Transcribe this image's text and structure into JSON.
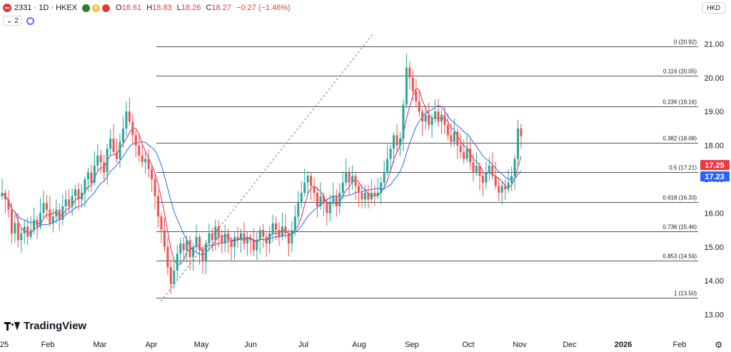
{
  "header": {
    "symbol_title": "2331 · 1D · HKEX",
    "badge_d": "D",
    "ohlc": [
      {
        "k": "O",
        "v": "18.61"
      },
      {
        "k": "H",
        "v": "18.83"
      },
      {
        "k": "L",
        "v": "18.26"
      },
      {
        "k": "C",
        "v": "18.27"
      }
    ],
    "change": "−0.27 (−1.46%)",
    "indicator_count": "2",
    "currency": "HKD"
  },
  "branding": {
    "logo_text": "TradingView"
  },
  "colors": {
    "up": "#26a69a",
    "down": "#ef5350",
    "ma_fast": "#e91e63",
    "ma_slow": "#2962ff",
    "fib_line": "#555555",
    "trend_line": "#787b86",
    "price_badge_red": "#f23645",
    "price_badge_blue": "#2962ff"
  },
  "chart_data": {
    "type": "candlestick",
    "title": "2331 · 1D · HKEX",
    "ylim": [
      12.55,
      21.45
    ],
    "y_ticks": [
      "21.00",
      "20.00",
      "19.00",
      "18.00",
      "17.00",
      "16.00",
      "15.00",
      "14.00",
      "13.00"
    ],
    "x_ticks": [
      "25",
      "Feb",
      "Mar",
      "Apr",
      "May",
      "Jun",
      "Jul",
      "Aug",
      "Sep",
      "Oct",
      "Nov",
      "Dec",
      "2026",
      "Feb"
    ],
    "fib_levels": [
      {
        "ratio": "0",
        "price": 20.92,
        "label": "0 (20.92)"
      },
      {
        "ratio": "0.116",
        "price": 20.05,
        "label": "0.116 (20.05)"
      },
      {
        "ratio": "0.236",
        "price": 19.16,
        "label": "0.236 (19.16)"
      },
      {
        "ratio": "0.382",
        "price": 18.08,
        "label": "0.382 (18.08)"
      },
      {
        "ratio": "0.5",
        "price": 17.21,
        "label": "0.5 (17.21)"
      },
      {
        "ratio": "0.618",
        "price": 16.33,
        "label": "0.618 (16.33)"
      },
      {
        "ratio": "0.736",
        "price": 15.46,
        "label": "0.736 (15.46)"
      },
      {
        "ratio": "0.853",
        "price": 14.59,
        "label": "0.853 (14.59)"
      },
      {
        "ratio": "1",
        "price": 13.5,
        "label": "1 (13.50)"
      }
    ],
    "price_badges": [
      {
        "value": "17.25",
        "price": 17.25,
        "color": "red"
      },
      {
        "value": "17.23",
        "price": 17.23,
        "color": "blue"
      }
    ],
    "closes": [
      [
        1,
        16.6
      ],
      [
        2,
        16.4
      ],
      [
        3,
        16.1
      ],
      [
        4,
        15.4
      ],
      [
        5,
        15.7
      ],
      [
        6,
        15.2
      ],
      [
        7,
        15.4
      ],
      [
        8,
        15.6
      ],
      [
        9,
        15.3
      ],
      [
        10,
        15.5
      ],
      [
        11,
        15.8
      ],
      [
        12,
        15.6
      ],
      [
        13,
        16.0
      ],
      [
        14,
        16.3
      ],
      [
        15,
        16.1
      ],
      [
        16,
        15.7
      ],
      [
        17,
        15.9
      ],
      [
        18,
        16.1
      ],
      [
        19,
        15.8
      ],
      [
        20,
        16.2
      ],
      [
        21,
        16.4
      ],
      [
        22,
        16.2
      ],
      [
        23,
        16.5
      ],
      [
        24,
        16.7
      ],
      [
        25,
        16.4
      ],
      [
        26,
        16.6
      ],
      [
        27,
        17.0
      ],
      [
        28,
        17.2
      ],
      [
        29,
        16.9
      ],
      [
        30,
        17.4
      ],
      [
        31,
        17.7
      ],
      [
        32,
        17.5
      ],
      [
        33,
        17.2
      ],
      [
        34,
        17.9
      ],
      [
        35,
        18.2
      ],
      [
        36,
        17.8
      ],
      [
        37,
        17.6
      ],
      [
        38,
        18.1
      ],
      [
        39,
        18.5
      ],
      [
        40,
        19.0
      ],
      [
        41,
        18.7
      ],
      [
        42,
        18.3
      ],
      [
        43,
        18.0
      ],
      [
        44,
        17.7
      ],
      [
        45,
        17.5
      ],
      [
        46,
        17.6
      ],
      [
        47,
        17.3
      ],
      [
        48,
        17.0
      ],
      [
        49,
        16.5
      ],
      [
        50,
        15.9
      ],
      [
        51,
        15.5
      ],
      [
        52,
        15.0
      ],
      [
        53,
        14.4
      ],
      [
        54,
        13.9
      ],
      [
        55,
        14.3
      ],
      [
        56,
        14.8
      ],
      [
        57,
        15.1
      ],
      [
        58,
        14.9
      ],
      [
        59,
        15.2
      ],
      [
        60,
        14.7
      ],
      [
        61,
        15.0
      ],
      [
        62,
        15.3
      ],
      [
        63,
        14.9
      ],
      [
        64,
        14.6
      ],
      [
        65,
        15.1
      ],
      [
        66,
        15.4
      ],
      [
        67,
        15.2
      ],
      [
        68,
        15.6
      ],
      [
        69,
        15.3
      ],
      [
        70,
        15.1
      ],
      [
        71,
        15.4
      ],
      [
        72,
        15.2
      ],
      [
        73,
        15.0
      ],
      [
        74,
        15.3
      ],
      [
        75,
        15.2
      ],
      [
        76,
        15.4
      ],
      [
        77,
        15.1
      ],
      [
        78,
        15.3
      ],
      [
        79,
        15.2
      ],
      [
        80,
        14.9
      ],
      [
        81,
        15.2
      ],
      [
        82,
        15.5
      ],
      [
        83,
        15.3
      ],
      [
        84,
        15.1
      ],
      [
        85,
        15.4
      ],
      [
        86,
        15.7
      ],
      [
        87,
        15.5
      ],
      [
        88,
        15.3
      ],
      [
        89,
        15.6
      ],
      [
        90,
        15.4
      ],
      [
        91,
        15.1
      ],
      [
        92,
        15.5
      ],
      [
        93,
        15.9
      ],
      [
        94,
        16.3
      ],
      [
        95,
        16.6
      ],
      [
        96,
        16.9
      ],
      [
        97,
        17.1
      ],
      [
        98,
        16.8
      ],
      [
        99,
        16.6
      ],
      [
        100,
        16.2
      ],
      [
        101,
        16.5
      ],
      [
        102,
        16.3
      ],
      [
        103,
        16.0
      ],
      [
        104,
        16.3
      ],
      [
        105,
        16.5
      ],
      [
        106,
        16.2
      ],
      [
        107,
        16.6
      ],
      [
        108,
        16.9
      ],
      [
        109,
        17.2
      ],
      [
        110,
        16.9
      ],
      [
        111,
        17.1
      ],
      [
        112,
        16.8
      ],
      [
        113,
        16.6
      ],
      [
        114,
        16.4
      ],
      [
        115,
        16.6
      ],
      [
        116,
        16.4
      ],
      [
        117,
        16.6
      ],
      [
        118,
        16.5
      ],
      [
        119,
        16.6
      ],
      [
        120,
        16.9
      ],
      [
        121,
        17.2
      ],
      [
        122,
        17.6
      ],
      [
        123,
        17.9
      ],
      [
        124,
        18.3
      ],
      [
        125,
        18.0
      ],
      [
        126,
        18.2
      ],
      [
        127,
        19.2
      ],
      [
        128,
        20.3
      ],
      [
        129,
        20.0
      ],
      [
        130,
        19.6
      ],
      [
        131,
        19.3
      ],
      [
        132,
        19.0
      ],
      [
        133,
        18.7
      ],
      [
        134,
        18.9
      ],
      [
        135,
        18.6
      ],
      [
        136,
        18.8
      ],
      [
        137,
        19.0
      ],
      [
        138,
        18.7
      ],
      [
        139,
        18.9
      ],
      [
        140,
        18.6
      ],
      [
        141,
        18.3
      ],
      [
        142,
        18.1
      ],
      [
        143,
        18.4
      ],
      [
        144,
        18.0
      ],
      [
        145,
        17.8
      ],
      [
        146,
        17.6
      ],
      [
        147,
        17.9
      ],
      [
        148,
        17.5
      ],
      [
        149,
        17.2
      ],
      [
        150,
        17.4
      ],
      [
        151,
        17.1
      ],
      [
        152,
        16.9
      ],
      [
        153,
        17.2
      ],
      [
        154,
        17.4
      ],
      [
        155,
        17.1
      ],
      [
        156,
        16.8
      ],
      [
        157,
        16.6
      ],
      [
        158,
        16.8
      ],
      [
        159,
        16.7
      ],
      [
        160,
        16.9
      ],
      [
        161,
        17.1
      ],
      [
        162,
        17.6
      ],
      [
        163,
        18.5
      ],
      [
        164,
        18.27
      ]
    ]
  }
}
